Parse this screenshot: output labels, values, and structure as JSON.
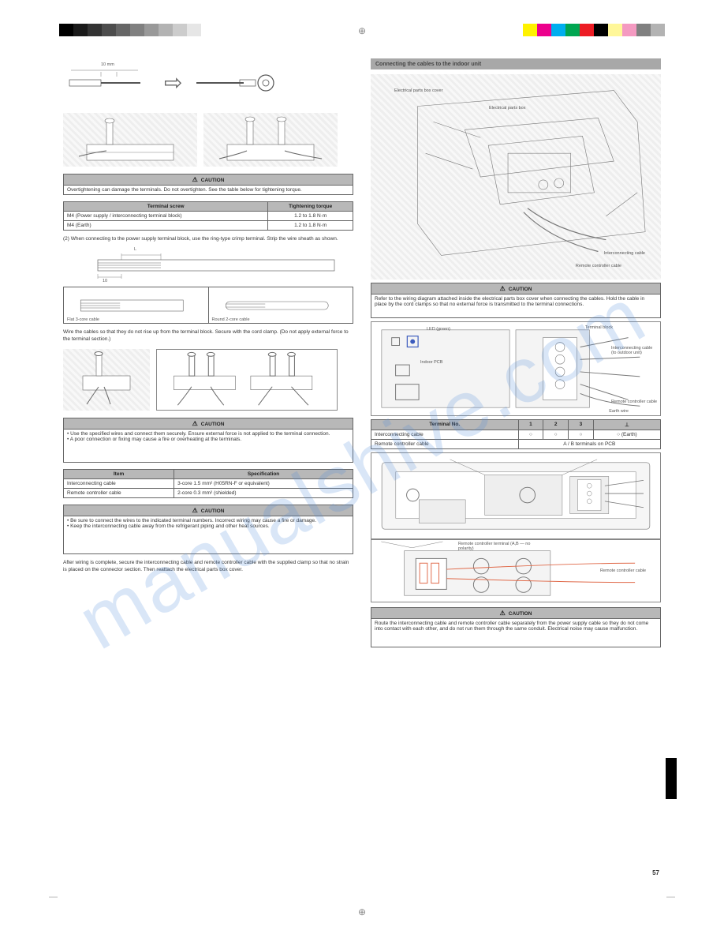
{
  "watermark": "manualshive.com",
  "page_number": "57",
  "crop_marks": {
    "center": "⊕",
    "corner_l": "—",
    "corner_r": "—"
  },
  "color_bars": {
    "left": [
      "#000000",
      "#1a1a1a",
      "#333333",
      "#4d4d4d",
      "#666666",
      "#808080",
      "#999999",
      "#b3b3b3",
      "#cccccc",
      "#e6e6e6",
      "#ffffff"
    ],
    "right": [
      "#fff200",
      "#ec008c",
      "#00aeef",
      "#00a651",
      "#ed1c24",
      "#000000",
      "#fff799",
      "#f49ac1",
      "#808080",
      "#b3b3b3"
    ]
  },
  "left_col": {
    "fig_strip": {
      "label_10mm": "10 mm",
      "arrow": "⇨"
    },
    "caution1": {
      "header": "CAUTION",
      "body": "Overtightening can damage the terminals. Do not overtighten. See the table below for tightening torque."
    },
    "torque_table": {
      "cols": [
        "Terminal screw",
        "Tightening torque"
      ],
      "rows": [
        [
          "M4 (Power supply / interconnecting terminal block)",
          "1.2 to 1.8 N·m"
        ],
        [
          "M4 (Earth)",
          "1.2 to 1.8 N·m"
        ]
      ]
    },
    "strip_note": "(2) When connecting to the power supply terminal block, use the ring-type crimp terminal. Strip the wire sheath as shown.",
    "strip_fig": {
      "dim_a": "L",
      "dim_b": "10"
    },
    "wire_table": {
      "rows": [
        [
          "Flat 3-core cable",
          "Round 2-core cable"
        ]
      ]
    },
    "fig_terminal_caption": "Wire the cables so that they do not rise up from the terminal block. Secure with the cord clamp. (Do not apply external force to the terminal section.)",
    "caution2": {
      "header": "CAUTION",
      "body": "• Use the specified wires and connect them securely. Ensure external force is not applied to the terminal connection.\n• A poor connection or fixing may cause a fire or overheating at the terminals."
    },
    "info_table": {
      "cols": [
        "Item",
        "Specification"
      ],
      "rows": [
        [
          "Interconnecting cable",
          "3-core 1.5 mm² (H05RN-F or equivalent)"
        ],
        [
          "Remote controller cable",
          "2-core 0.3 mm² (shielded)"
        ]
      ]
    },
    "caution3": {
      "header": "CAUTION",
      "body": "• Be sure to connect the wires to the indicated terminal numbers. Incorrect wiring may cause a fire or damage.\n• Keep the interconnecting cable away from the refrigerant piping and other heat sources."
    },
    "bottom_note": "After wiring is complete, secure the interconnecting cable and remote controller cable with the supplied clamp so that no strain is placed on the connector section. Then reattach the electrical parts box cover."
  },
  "right_col": {
    "band": "Connecting the cables to the indoor unit",
    "unit_fig": {
      "l1": "Electrical parts box cover",
      "l2": "Electrical parts box",
      "l3": "Interconnecting cable",
      "l4": "Remote controller cable"
    },
    "caution": {
      "header": "CAUTION",
      "body": "Refer to the wiring diagram attached inside the electrical parts box cover when connecting the cables. Hold the cable in place by the cord clamps so that no external force is transmitted to the terminal connections."
    },
    "pcb_fig": {
      "l_led": "LED (green)",
      "l_pcb": "Indoor PCB",
      "l_tb": "Terminal block",
      "l_intc": "Interconnecting cable (to outdoor unit)",
      "l_rc": "Remote controller cable",
      "l_earth": "Earth wire"
    },
    "term_table": {
      "cols": [
        "Terminal No.",
        "1",
        "2",
        "3",
        "⊥"
      ],
      "rows": [
        [
          "Interconnecting cable",
          "○",
          "○",
          "○",
          "○ (Earth)"
        ],
        [
          "Remote controller cable",
          "A / B terminals on PCB",
          "",
          "",
          ""
        ]
      ]
    },
    "rc_fig": {
      "l1": "Remote controller terminal (A,B — no polarity)",
      "l2": "Remote controller cable"
    },
    "caution_bottom": {
      "header": "CAUTION",
      "body": "Route the interconnecting cable and remote controller cable separately from the power supply cable so they do not come into contact with each other, and do not run them through the same conduit. Electrical noise may cause malfunction."
    }
  }
}
